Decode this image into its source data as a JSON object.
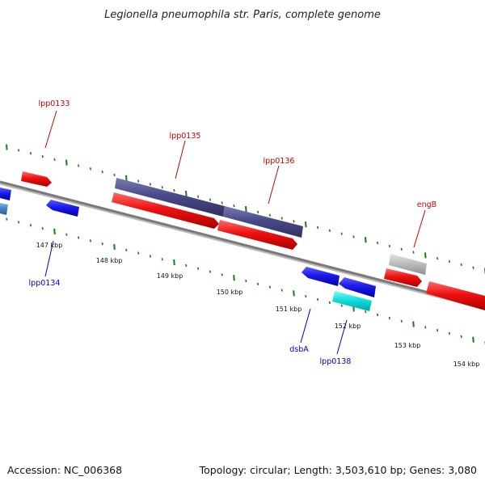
{
  "title": "Legionella pneumophila str. Paris, complete genome",
  "footer": {
    "accession": "Accession: NC_006368",
    "summary": "Topology: circular; Length: 3,503,610 bp; Genes: 3,080"
  },
  "scale": {
    "tick_labels": [
      "147 kbp",
      "148 kbp",
      "149 kbp",
      "150 kbp",
      "151 kbp",
      "152 kbp",
      "153 kbp",
      "154 kbp"
    ]
  },
  "colors": {
    "background": "#ffffff",
    "backbone": "#7a7a7a",
    "tick": "#1a7a1a",
    "forward_label": "#cc0000",
    "reverse_label": "#0000cc",
    "gene_red": "#ee1111",
    "gene_blue": "#1a1aee",
    "gene_purple": "#4a4a8a",
    "gene_gray": "#bdbdbd",
    "gene_cyan": "#11dddd",
    "gene_steelblue": "#4a86c8"
  },
  "labels": {
    "forward": [
      {
        "text": "lpp0133",
        "name": "label-lpp0133"
      },
      {
        "text": "lpp0135",
        "name": "label-lpp0135"
      },
      {
        "text": "lpp0136",
        "name": "label-lpp0136"
      },
      {
        "text": "engB",
        "name": "label-engB"
      }
    ],
    "reverse": [
      {
        "text": "lpp0134",
        "name": "label-lpp0134"
      },
      {
        "text": "dsbA",
        "name": "label-dsbA"
      },
      {
        "text": "lpp0138",
        "name": "label-lpp0138"
      }
    ]
  },
  "genes": [
    {
      "name": "gene-lpp0133",
      "color": "red"
    },
    {
      "name": "gene-partial-blue-left",
      "color": "blue"
    },
    {
      "name": "gene-partial-steelblue-left",
      "color": "steelblue"
    },
    {
      "name": "gene-lpp0134",
      "color": "blue"
    },
    {
      "name": "gene-lpp0135-feature",
      "color": "purple"
    },
    {
      "name": "gene-lpp0136-feature",
      "color": "purple"
    },
    {
      "name": "gene-lpp0135",
      "color": "red"
    },
    {
      "name": "gene-lpp0136",
      "color": "red"
    },
    {
      "name": "gene-engB-feature",
      "color": "gray"
    },
    {
      "name": "gene-engB",
      "color": "red"
    },
    {
      "name": "gene-partial-red-right",
      "color": "red"
    },
    {
      "name": "gene-dsbA",
      "color": "blue"
    },
    {
      "name": "gene-lpp0138-a",
      "color": "blue"
    },
    {
      "name": "gene-lpp0138",
      "color": "cyan"
    }
  ]
}
